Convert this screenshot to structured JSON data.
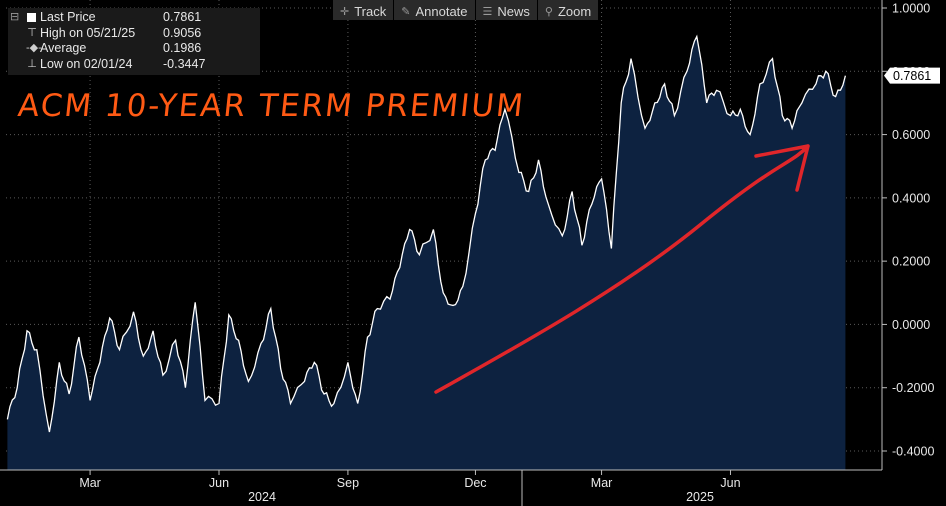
{
  "toolbar": {
    "track_label": "Track",
    "annotate_label": "Annotate",
    "news_label": "News",
    "zoom_label": "Zoom"
  },
  "legend": {
    "last_label": "Last Price",
    "last_value": "0.7861",
    "high_label": "High on 05/21/25",
    "high_value": "0.9056",
    "avg_label": "Average",
    "avg_value": "0.1986",
    "low_label": "Low on 02/01/24",
    "low_value": "-0.3447"
  },
  "annotation": {
    "title": "ACM 10-YEAR TERM PREMIUM"
  },
  "colors": {
    "background": "#000000",
    "area_fill": "#0d2240",
    "line": "#ffffff",
    "title": "#ff5a14",
    "arrow": "#e0262a"
  },
  "chart_data": {
    "type": "area",
    "title": "",
    "ylim": [
      -0.45,
      1.0
    ],
    "y_ticks": [
      "1.0000",
      "0.8000",
      "0.6000",
      "0.4000",
      "0.2000",
      "0.0000",
      "-0.2000",
      "-0.4000"
    ],
    "y_tick_values": [
      1.0,
      0.8,
      0.6,
      0.4,
      0.2,
      0.0,
      -0.2,
      -0.4
    ],
    "x_months": [
      "Mar",
      "Jun",
      "Sep",
      "Dec",
      "Mar",
      "Jun"
    ],
    "x_years": [
      "2024",
      "2025"
    ],
    "last_value_label": "0.7861",
    "series": [
      {
        "x": [
          "2024-01-02",
          "2024-01-09",
          "2024-01-16",
          "2024-01-23",
          "2024-02-01",
          "2024-02-08",
          "2024-02-15",
          "2024-02-22",
          "2024-03-01",
          "2024-03-08",
          "2024-03-15",
          "2024-03-22",
          "2024-04-01",
          "2024-04-08",
          "2024-04-15",
          "2024-04-22",
          "2024-05-01",
          "2024-05-08",
          "2024-05-15",
          "2024-05-22",
          "2024-06-01",
          "2024-06-08",
          "2024-06-15",
          "2024-06-22",
          "2024-07-01",
          "2024-07-08",
          "2024-07-15",
          "2024-07-22",
          "2024-08-01",
          "2024-08-08",
          "2024-08-15",
          "2024-08-22",
          "2024-09-01",
          "2024-09-08",
          "2024-09-15",
          "2024-09-22",
          "2024-10-01",
          "2024-10-08",
          "2024-10-15",
          "2024-10-22",
          "2024-11-01",
          "2024-11-08",
          "2024-11-15",
          "2024-11-22",
          "2024-12-01",
          "2024-12-08",
          "2024-12-15",
          "2024-12-22",
          "2025-01-01",
          "2025-01-08",
          "2025-01-15",
          "2025-01-22",
          "2025-02-01",
          "2025-02-08",
          "2025-02-15",
          "2025-02-22",
          "2025-03-01",
          "2025-03-08",
          "2025-03-15",
          "2025-03-22",
          "2025-04-01",
          "2025-04-08",
          "2025-04-15",
          "2025-04-22",
          "2025-05-01",
          "2025-05-08",
          "2025-05-15",
          "2025-05-22",
          "2025-06-01",
          "2025-06-08",
          "2025-06-15",
          "2025-06-22",
          "2025-07-01",
          "2025-07-08",
          "2025-07-15",
          "2025-07-22",
          "2025-08-01",
          "2025-08-08",
          "2025-08-15",
          "2025-08-22"
        ],
        "values": [
          -0.3,
          -0.2,
          -0.02,
          -0.08,
          -0.34,
          -0.12,
          -0.22,
          -0.04,
          -0.24,
          -0.12,
          0.02,
          -0.08,
          0.04,
          -0.1,
          -0.02,
          -0.16,
          -0.05,
          -0.2,
          0.07,
          -0.24,
          -0.25,
          0.03,
          -0.05,
          -0.18,
          -0.06,
          0.05,
          -0.14,
          -0.25,
          -0.18,
          -0.12,
          -0.22,
          -0.25,
          -0.12,
          -0.25,
          -0.04,
          0.05,
          0.08,
          0.18,
          0.3,
          0.22,
          0.3,
          0.1,
          0.06,
          0.12,
          0.35,
          0.52,
          0.55,
          0.68,
          0.48,
          0.42,
          0.52,
          0.38,
          0.28,
          0.42,
          0.25,
          0.38,
          0.46,
          0.24,
          0.7,
          0.84,
          0.62,
          0.7,
          0.76,
          0.66,
          0.8,
          0.91,
          0.7,
          0.74,
          0.66,
          0.68,
          0.6,
          0.76,
          0.84,
          0.66,
          0.62,
          0.7,
          0.76,
          0.8,
          0.72,
          0.7861
        ]
      }
    ]
  }
}
